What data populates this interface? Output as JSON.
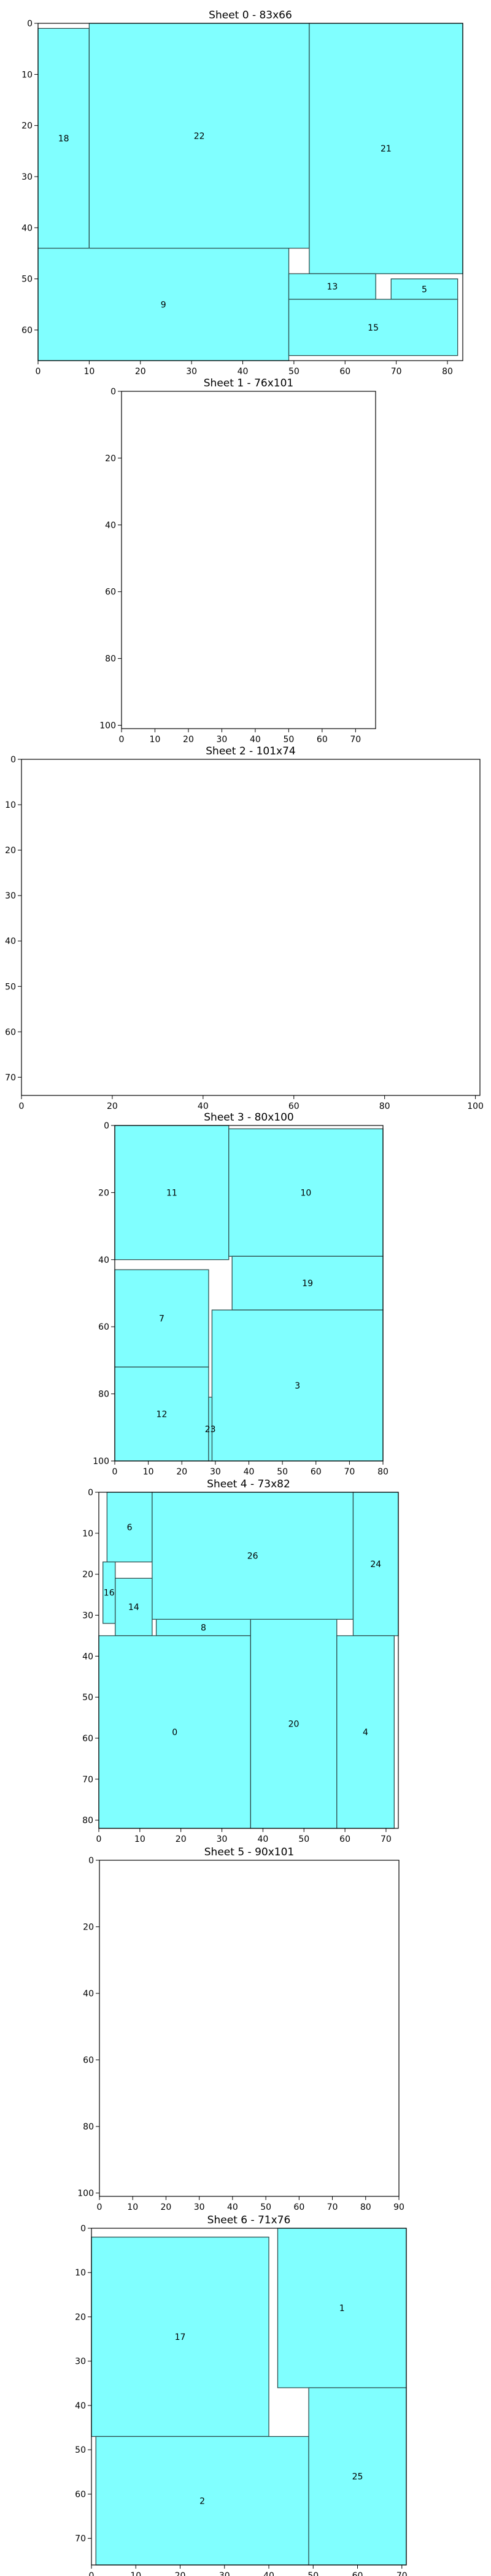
{
  "chart_data": [
    {
      "type": "rect-packing",
      "title": "Sheet 0 - 83x66",
      "xlim": [
        0,
        83
      ],
      "ylim": [
        0,
        66
      ],
      "y_inverted": true,
      "xticks": [
        0,
        10,
        20,
        30,
        40,
        50,
        60,
        70,
        80
      ],
      "yticks": [
        0,
        10,
        20,
        30,
        40,
        50,
        60
      ],
      "fill": "#80ffff",
      "edge": "#2f4f4f",
      "pieces": [
        {
          "id": "18",
          "x0": 0,
          "y0": 1,
          "x1": 10,
          "y1": 44
        },
        {
          "id": "22",
          "x0": 10,
          "y0": 0,
          "x1": 53,
          "y1": 44
        },
        {
          "id": "21",
          "x0": 53,
          "y0": 0,
          "x1": 83,
          "y1": 49
        },
        {
          "id": "9",
          "x0": 0,
          "y0": 44,
          "x1": 49,
          "y1": 66
        },
        {
          "id": "13",
          "x0": 49,
          "y0": 49,
          "x1": 66,
          "y1": 54
        },
        {
          "id": "5",
          "x0": 69,
          "y0": 50,
          "x1": 82,
          "y1": 54
        },
        {
          "id": "15",
          "x0": 49,
          "y0": 54,
          "x1": 82,
          "y1": 65
        }
      ]
    },
    {
      "type": "rect-packing",
      "title": "Sheet 1 - 76x101",
      "xlim": [
        0,
        76
      ],
      "ylim": [
        0,
        101
      ],
      "y_inverted": true,
      "xticks": [
        0,
        10,
        20,
        30,
        40,
        50,
        60,
        70
      ],
      "yticks": [
        0,
        20,
        40,
        60,
        80,
        100
      ],
      "pieces": []
    },
    {
      "type": "rect-packing",
      "title": "Sheet 2 - 101x74",
      "xlim": [
        0,
        101
      ],
      "ylim": [
        0,
        74
      ],
      "y_inverted": true,
      "xticks": [
        0,
        20,
        40,
        60,
        80,
        100
      ],
      "yticks": [
        0,
        10,
        20,
        30,
        40,
        50,
        60,
        70
      ],
      "pieces": []
    },
    {
      "type": "rect-packing",
      "title": "Sheet 3 - 80x100",
      "xlim": [
        0,
        80
      ],
      "ylim": [
        0,
        100
      ],
      "y_inverted": true,
      "xticks": [
        0,
        10,
        20,
        30,
        40,
        50,
        60,
        70,
        80
      ],
      "yticks": [
        0,
        20,
        40,
        60,
        80,
        100
      ],
      "pieces": [
        {
          "id": "11",
          "x0": 0,
          "y0": 0,
          "x1": 34,
          "y1": 40
        },
        {
          "id": "10",
          "x0": 34,
          "y0": 1,
          "x1": 80,
          "y1": 39
        },
        {
          "id": "19",
          "x0": 35,
          "y0": 39,
          "x1": 80,
          "y1": 55
        },
        {
          "id": "7",
          "x0": 0,
          "y0": 43,
          "x1": 28,
          "y1": 72
        },
        {
          "id": "3",
          "x0": 29,
          "y0": 55,
          "x1": 80,
          "y1": 100
        },
        {
          "id": "12",
          "x0": 0,
          "y0": 72,
          "x1": 28,
          "y1": 100
        },
        {
          "id": "23",
          "x0": 28,
          "y0": 81,
          "x1": 29,
          "y1": 100
        }
      ]
    },
    {
      "type": "rect-packing",
      "title": "Sheet 4 - 73x82",
      "xlim": [
        0,
        73
      ],
      "ylim": [
        0,
        82
      ],
      "y_inverted": true,
      "xticks": [
        0,
        10,
        20,
        30,
        40,
        50,
        60,
        70
      ],
      "yticks": [
        0,
        10,
        20,
        30,
        40,
        50,
        60,
        70,
        80
      ],
      "pieces": [
        {
          "id": "6",
          "x0": 2,
          "y0": 0,
          "x1": 13,
          "y1": 17
        },
        {
          "id": "26",
          "x0": 13,
          "y0": 0,
          "x1": 62,
          "y1": 31
        },
        {
          "id": "24",
          "x0": 62,
          "y0": 0,
          "x1": 73,
          "y1": 35
        },
        {
          "id": "16",
          "x0": 1,
          "y0": 17,
          "x1": 4,
          "y1": 32
        },
        {
          "id": "14",
          "x0": 4,
          "y0": 21,
          "x1": 13,
          "y1": 35
        },
        {
          "id": "8",
          "x0": 14,
          "y0": 31,
          "x1": 37,
          "y1": 35
        },
        {
          "id": "0",
          "x0": 0,
          "y0": 35,
          "x1": 37,
          "y1": 82
        },
        {
          "id": "20",
          "x0": 37,
          "y0": 31,
          "x1": 58,
          "y1": 82
        },
        {
          "id": "4",
          "x0": 58,
          "y0": 35,
          "x1": 72,
          "y1": 82
        }
      ]
    },
    {
      "type": "rect-packing",
      "title": "Sheet 5 - 90x101",
      "xlim": [
        0,
        90
      ],
      "ylim": [
        0,
        101
      ],
      "y_inverted": true,
      "xticks": [
        0,
        10,
        20,
        30,
        40,
        50,
        60,
        70,
        80,
        90
      ],
      "yticks": [
        0,
        20,
        40,
        60,
        80,
        100
      ],
      "pieces": []
    },
    {
      "type": "rect-packing",
      "title": "Sheet 6 - 71x76",
      "xlim": [
        0,
        71
      ],
      "ylim": [
        0,
        76
      ],
      "y_inverted": true,
      "xticks": [
        0,
        10,
        20,
        30,
        40,
        50,
        60,
        70
      ],
      "yticks": [
        0,
        10,
        20,
        30,
        40,
        50,
        60,
        70
      ],
      "pieces": [
        {
          "id": "17",
          "x0": 0,
          "y0": 2,
          "x1": 40,
          "y1": 47
        },
        {
          "id": "1",
          "x0": 42,
          "y0": 0,
          "x1": 71,
          "y1": 36
        },
        {
          "id": "2",
          "x0": 1,
          "y0": 47,
          "x1": 49,
          "y1": 76
        },
        {
          "id": "25",
          "x0": 49,
          "y0": 36,
          "x1": 71,
          "y1": 76
        }
      ]
    }
  ]
}
